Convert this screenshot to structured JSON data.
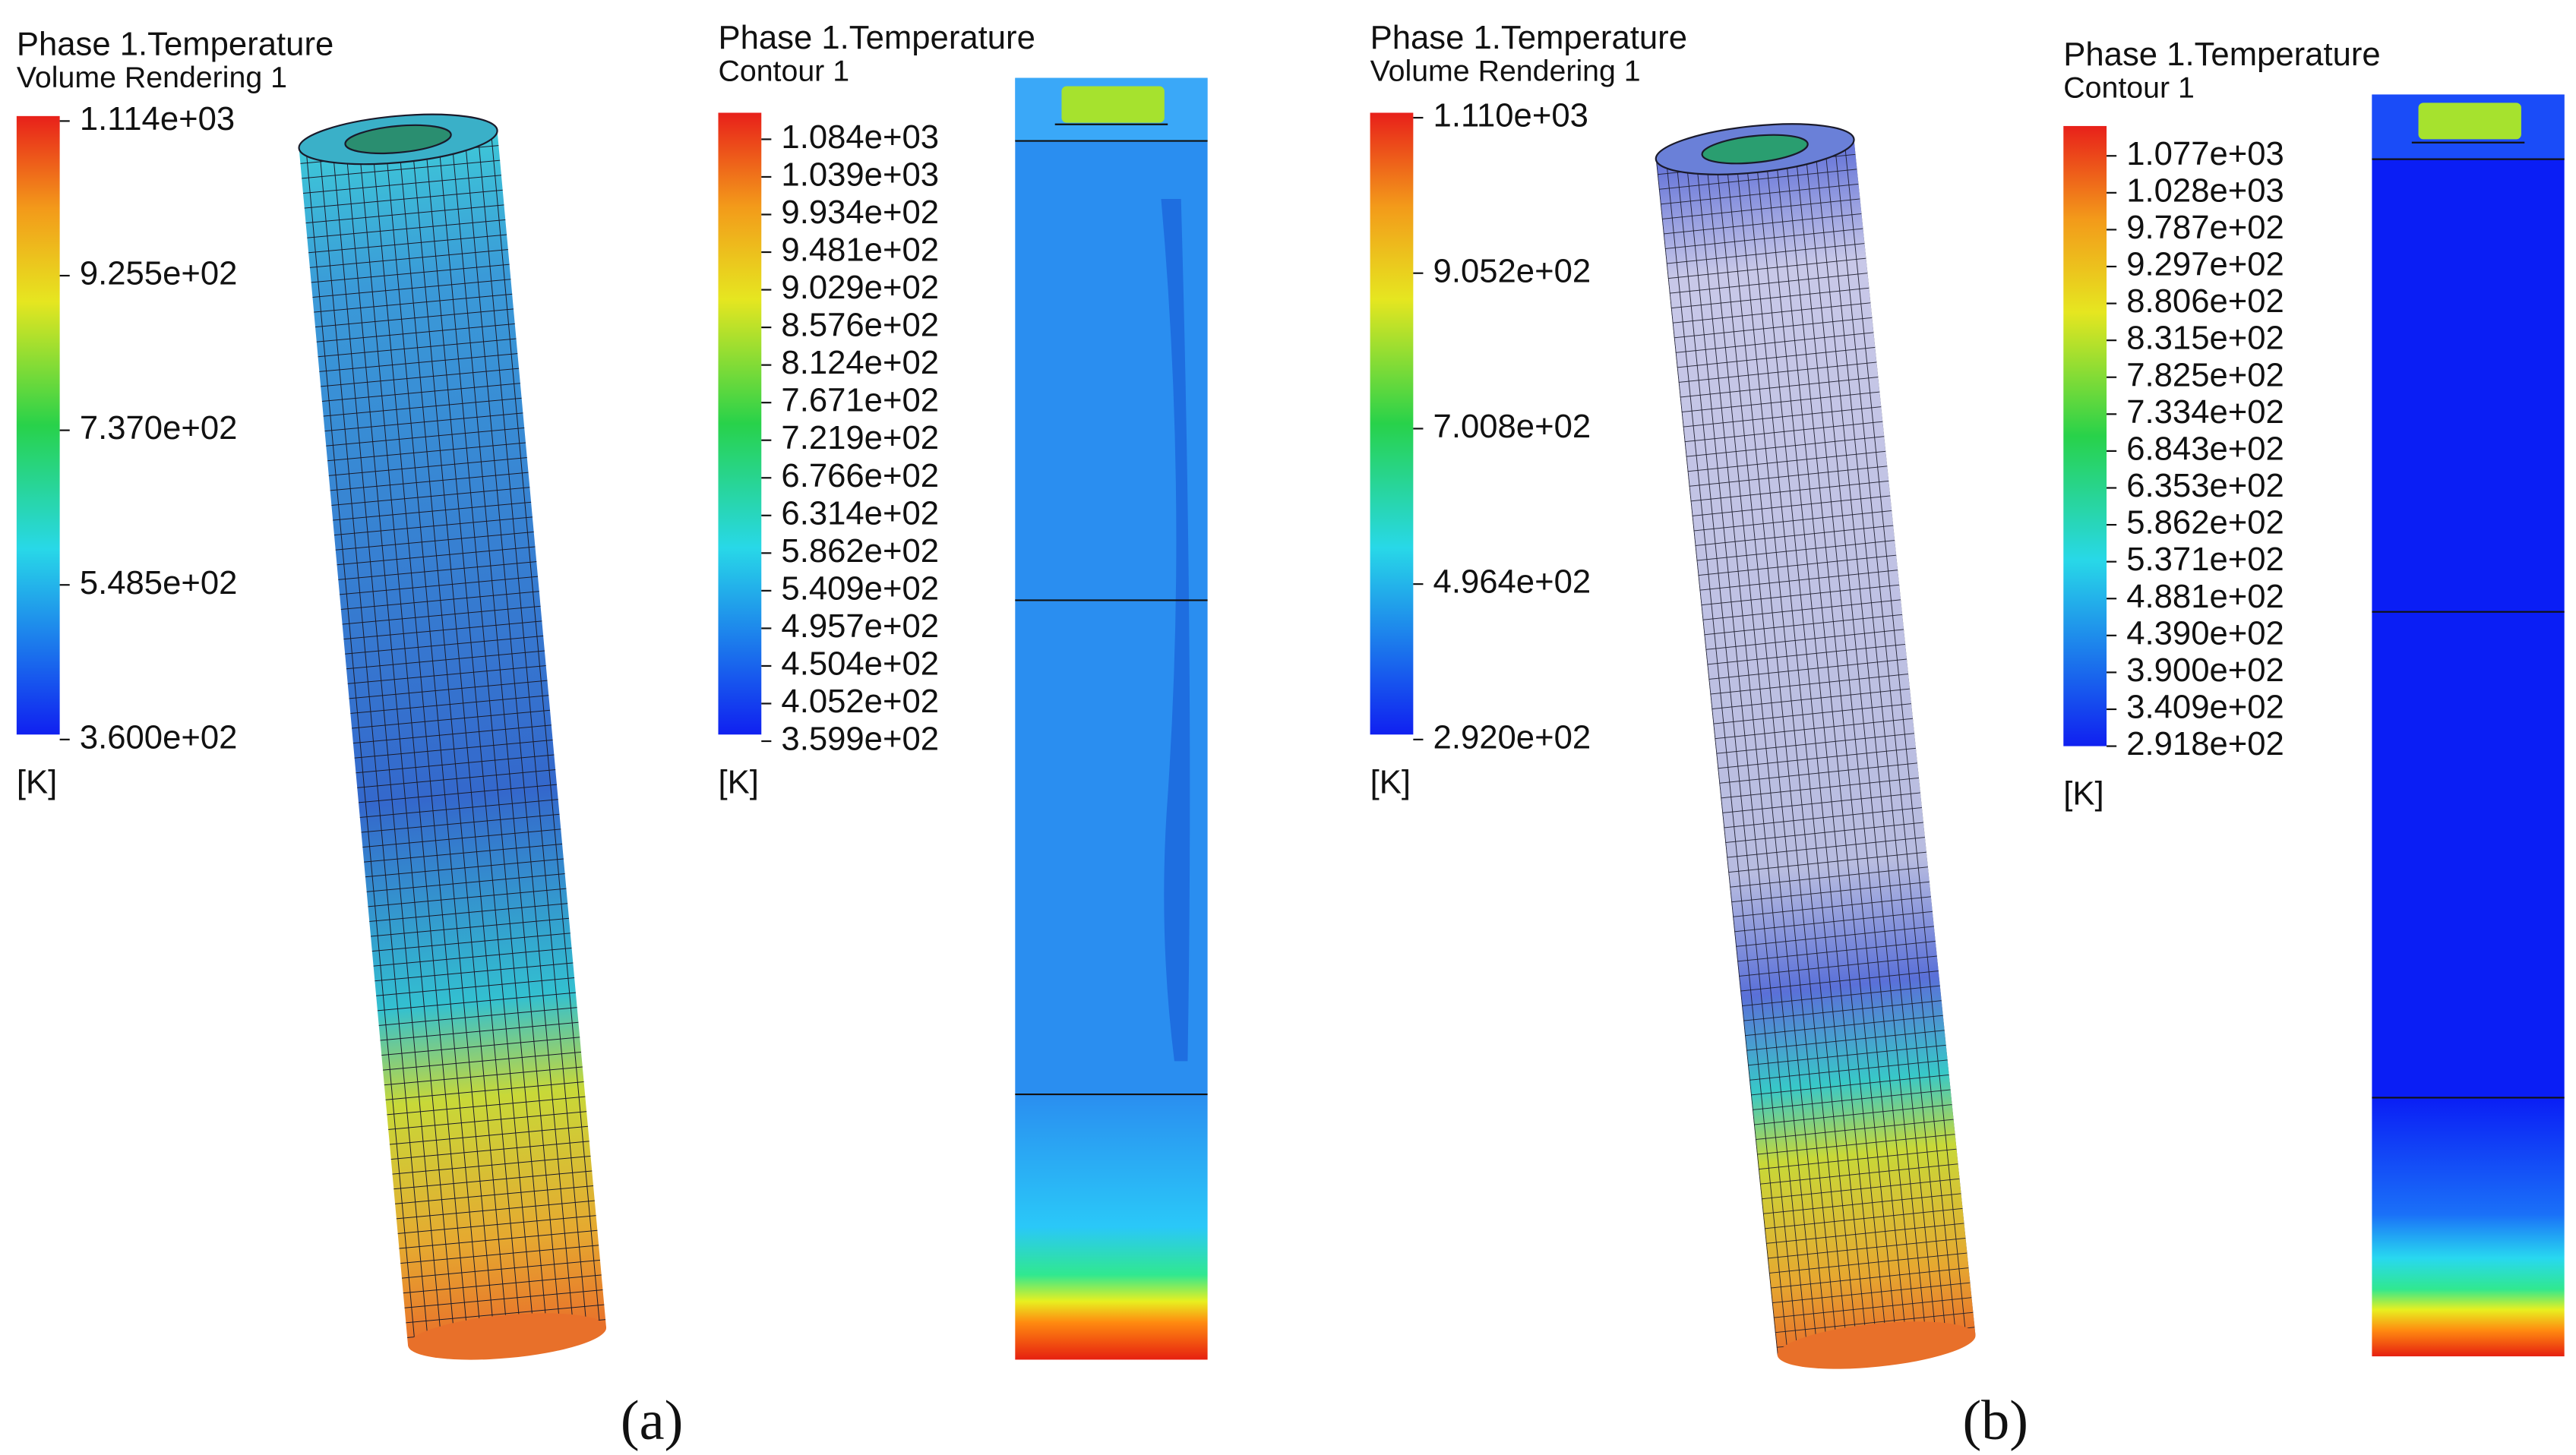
{
  "panels": [
    {
      "caption": "(a)",
      "volume": {
        "title": "Phase 1.Temperature",
        "subtitle": "Volume Rendering 1",
        "labels": [
          "1.114e+03",
          "9.255e+02",
          "7.370e+02",
          "5.485e+02",
          "3.600e+02"
        ],
        "unit": "[K]"
      },
      "contour": {
        "title": "Phase 1.Temperature",
        "subtitle": "Contour 1",
        "labels": [
          "1.084e+03",
          "1.039e+03",
          "9.934e+02",
          "9.481e+02",
          "9.029e+02",
          "8.576e+02",
          "8.124e+02",
          "7.671e+02",
          "7.219e+02",
          "6.766e+02",
          "6.314e+02",
          "5.862e+02",
          "5.409e+02",
          "4.957e+02",
          "4.504e+02",
          "4.052e+02",
          "3.599e+02"
        ],
        "unit": "[K]"
      }
    },
    {
      "caption": "(b)",
      "volume": {
        "title": "Phase 1.Temperature",
        "subtitle": "Volume Rendering 1",
        "labels": [
          "1.110e+03",
          "9.052e+02",
          "7.008e+02",
          "4.964e+02",
          "2.920e+02"
        ],
        "unit": "[K]"
      },
      "contour": {
        "title": "Phase 1.Temperature",
        "subtitle": "Contour 1",
        "labels": [
          "1.077e+03",
          "1.028e+03",
          "9.787e+02",
          "9.297e+02",
          "8.806e+02",
          "8.315e+02",
          "7.825e+02",
          "7.334e+02",
          "6.843e+02",
          "6.353e+02",
          "5.862e+02",
          "5.371e+02",
          "4.881e+02",
          "4.390e+02",
          "3.900e+02",
          "3.409e+02",
          "2.918e+02"
        ],
        "unit": "[K]"
      }
    }
  ]
}
